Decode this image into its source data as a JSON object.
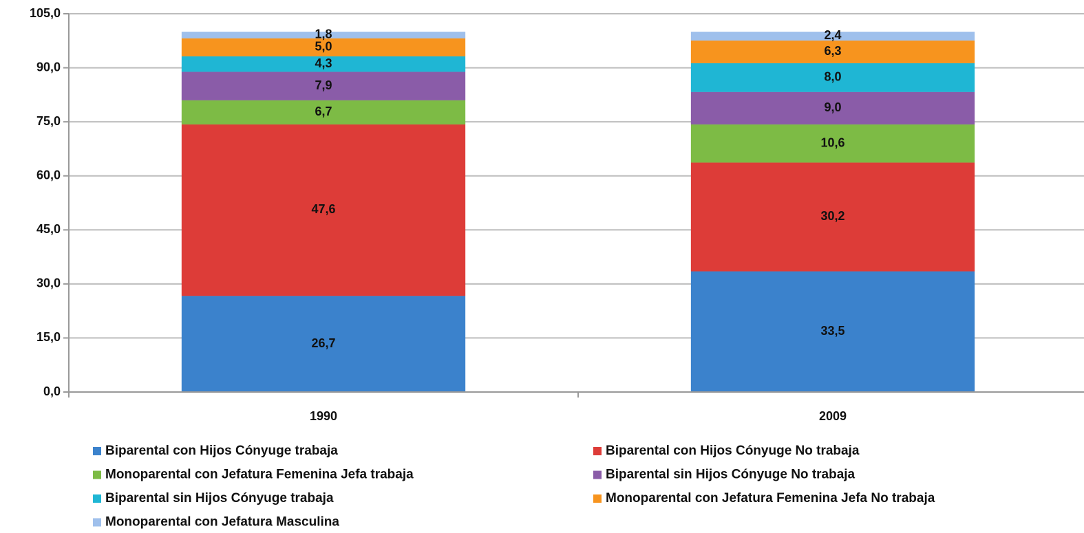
{
  "chart_data": {
    "type": "stacked-bar",
    "categories": [
      "1990",
      "2009"
    ],
    "series": [
      {
        "name": "Biparental con Hijos Cónyuge trabaja",
        "color": "#3b82cc",
        "values": [
          26.7,
          33.5
        ],
        "value_labels": [
          "26,7",
          "33,5"
        ]
      },
      {
        "name": "Biparental con Hijos Cónyuge No trabaja",
        "color": "#dd3c38",
        "values": [
          47.6,
          30.2
        ],
        "value_labels": [
          "47,6",
          "30,2"
        ]
      },
      {
        "name": "Monoparental con Jefatura Femenina Jefa trabaja",
        "color": "#7dbb45",
        "values": [
          6.7,
          10.6
        ],
        "value_labels": [
          "6,7",
          "10,6"
        ]
      },
      {
        "name": "Biparental sin Hijos Cónyuge No trabaja",
        "color": "#8a5ca8",
        "values": [
          7.9,
          9.0
        ],
        "value_labels": [
          "7,9",
          "9,0"
        ]
      },
      {
        "name": "Biparental sin Hijos Cónyuge trabaja",
        "color": "#1fb6d4",
        "values": [
          4.3,
          8.0
        ],
        "value_labels": [
          "4,3",
          "8,0"
        ]
      },
      {
        "name": "Monoparental con Jefatura Femenina Jefa No trabaja",
        "color": "#f7941e",
        "values": [
          5.0,
          6.3
        ],
        "value_labels": [
          "5,0",
          "6,3"
        ]
      },
      {
        "name": "Monoparental con Jefatura Masculina",
        "color": "#9fc0ec",
        "values": [
          1.8,
          2.4
        ],
        "value_labels": [
          "1,8",
          "2,4"
        ]
      }
    ],
    "ylim": [
      0,
      105
    ],
    "yticks": [
      {
        "value": 0,
        "label": "0,0"
      },
      {
        "value": 15,
        "label": "15,0"
      },
      {
        "value": 30,
        "label": "30,0"
      },
      {
        "value": 45,
        "label": "45,0"
      },
      {
        "value": 60,
        "label": "60,0"
      },
      {
        "value": 75,
        "label": "75,0"
      },
      {
        "value": 90,
        "label": "90,0"
      },
      {
        "value": 105,
        "label": "105,0"
      }
    ],
    "grid": true,
    "legend": "bottom"
  }
}
